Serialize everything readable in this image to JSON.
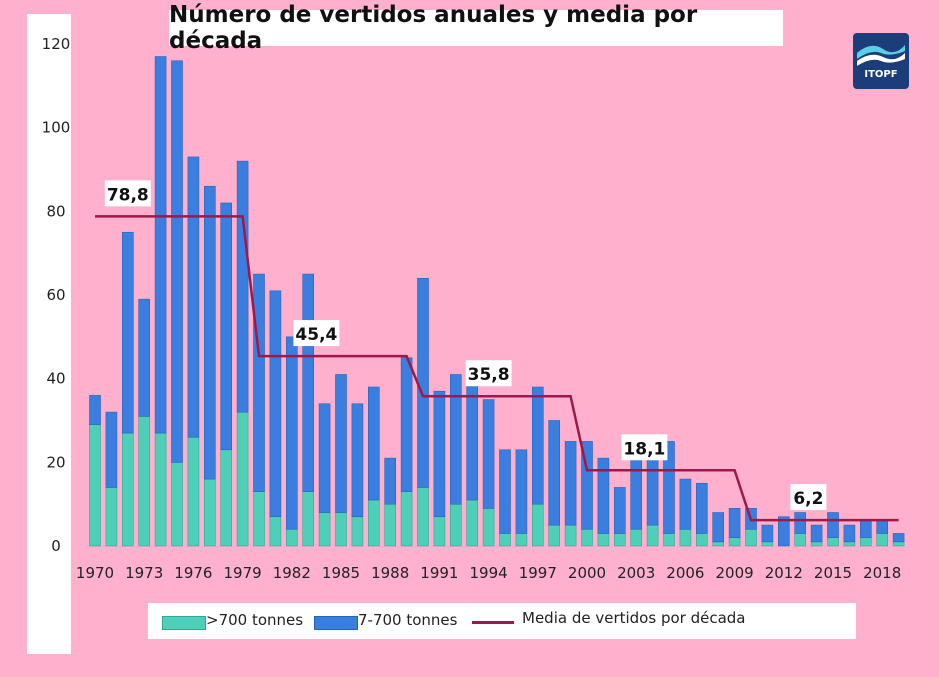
{
  "chart_data": {
    "type": "bar",
    "stacked": true,
    "title": "Número de vertidos anuales y media por década",
    "xlabel": "",
    "ylabel": "",
    "ylim": [
      0,
      120
    ],
    "yticks": [
      0,
      20,
      40,
      60,
      80,
      100,
      120
    ],
    "categories": [
      1970,
      1971,
      1972,
      1973,
      1974,
      1975,
      1976,
      1977,
      1978,
      1979,
      1980,
      1981,
      1982,
      1983,
      1984,
      1985,
      1986,
      1987,
      1988,
      1989,
      1990,
      1991,
      1992,
      1993,
      1994,
      1995,
      1996,
      1997,
      1998,
      1999,
      2000,
      2001,
      2002,
      2003,
      2004,
      2005,
      2006,
      2007,
      2008,
      2009,
      2010,
      2011,
      2012,
      2013,
      2014,
      2015,
      2016,
      2017,
      2018,
      2019
    ],
    "xtick_labels": [
      "1970",
      "1973",
      "1976",
      "1979",
      "1982",
      "1985",
      "1988",
      "1991",
      "1994",
      "1997",
      "2000",
      "2003",
      "2006",
      "2009",
      "2012",
      "2015",
      "2018"
    ],
    "series": [
      {
        "name": ">700 tonnes",
        "color": "#4ecfb8",
        "values": [
          29,
          14,
          27,
          31,
          27,
          20,
          26,
          16,
          23,
          32,
          13,
          7,
          4,
          13,
          8,
          8,
          7,
          11,
          10,
          13,
          14,
          7,
          10,
          11,
          9,
          3,
          3,
          10,
          5,
          5,
          4,
          3,
          3,
          4,
          5,
          3,
          4,
          3,
          1,
          2,
          4,
          1,
          0,
          3,
          1,
          2,
          1,
          2,
          3,
          1
        ]
      },
      {
        "name": "7-700 tonnes",
        "color": "#3a7fe0",
        "values": [
          7,
          18,
          48,
          28,
          90,
          96,
          67,
          70,
          59,
          60,
          52,
          54,
          46,
          52,
          26,
          33,
          27,
          27,
          11,
          32,
          50,
          30,
          31,
          31,
          26,
          20,
          20,
          28,
          25,
          20,
          21,
          18,
          11,
          19,
          20,
          22,
          12,
          12,
          7,
          7,
          5,
          4,
          7,
          5,
          4,
          6,
          4,
          4,
          3,
          2
        ]
      }
    ],
    "decade_average": {
      "name": "Media de vertidos por década",
      "color": "#9c1a4b",
      "segments": [
        {
          "start": 1970,
          "end": 1979,
          "value": 78.8,
          "label": "78,8"
        },
        {
          "start": 1980,
          "end": 1989,
          "value": 45.4,
          "label": "45,4"
        },
        {
          "start": 1990,
          "end": 1999,
          "value": 35.8,
          "label": "35,8"
        },
        {
          "start": 2000,
          "end": 2009,
          "value": 18.1,
          "label": "18,1"
        },
        {
          "start": 2010,
          "end": 2019,
          "value": 6.2,
          "label": "6,2"
        }
      ]
    },
    "legend": {
      "position": "bottom"
    },
    "grid": false
  },
  "logo": {
    "text": "ITOPF"
  }
}
